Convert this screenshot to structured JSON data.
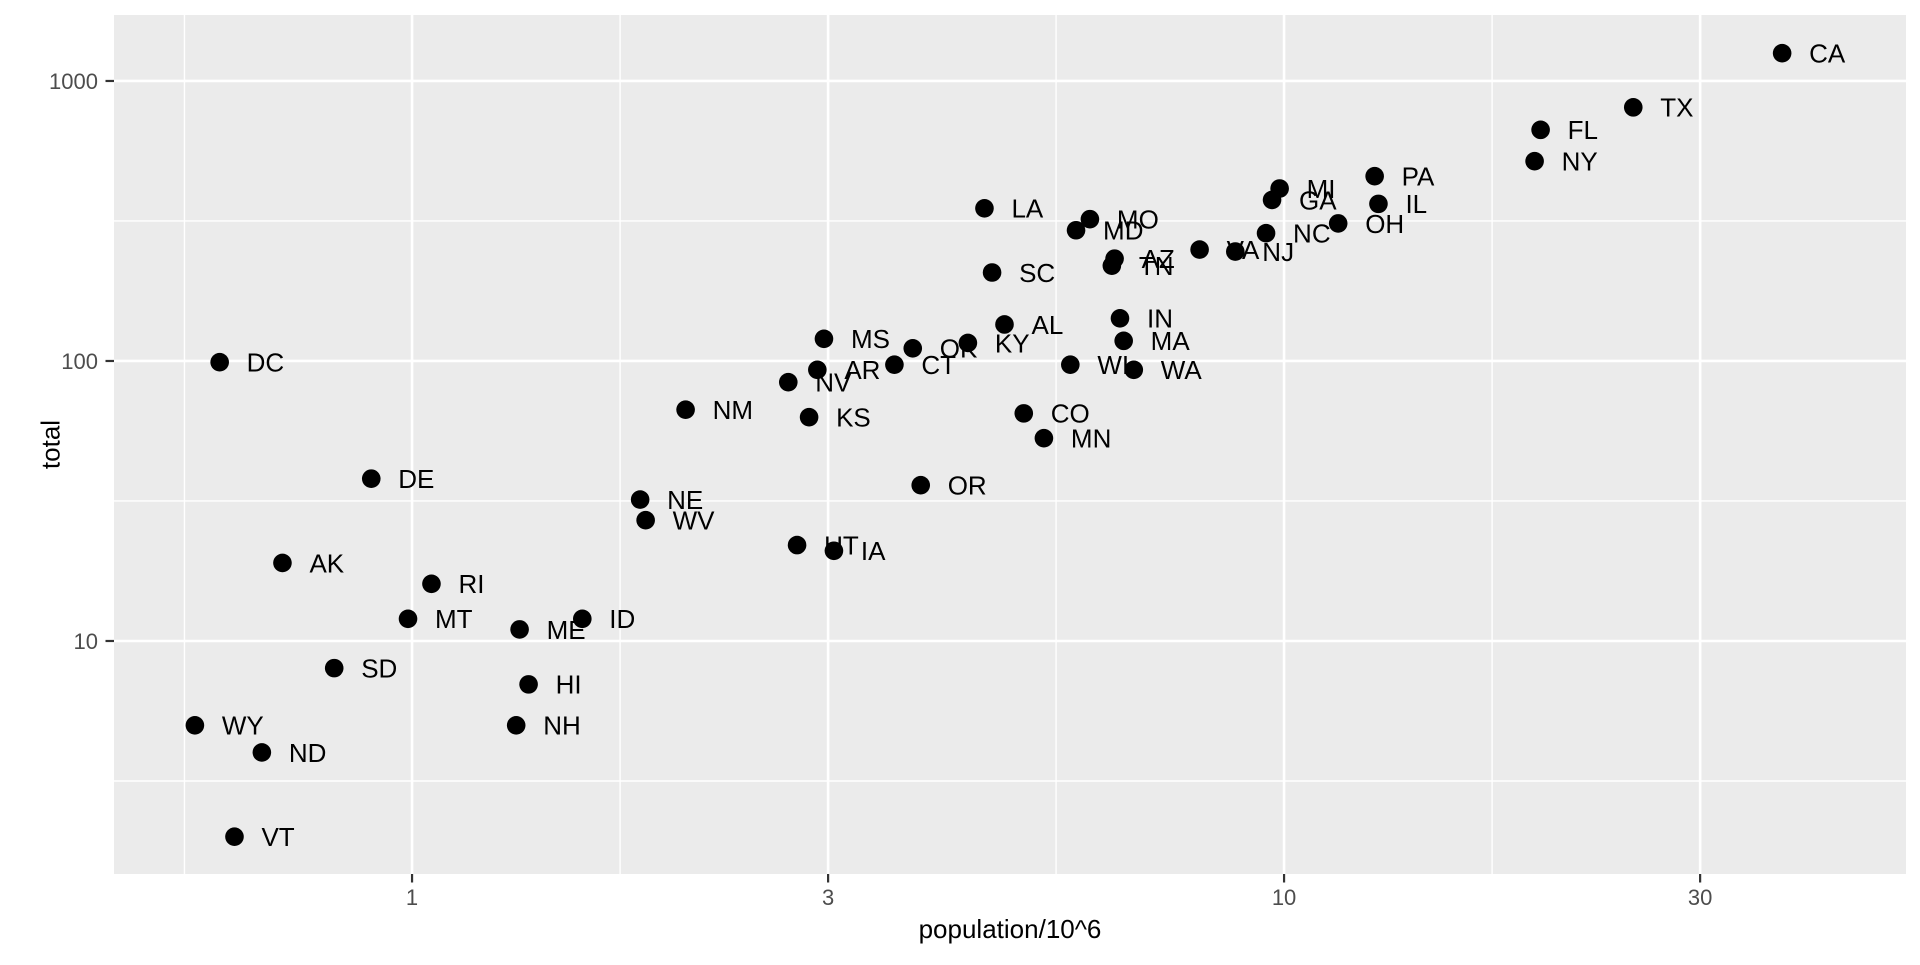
{
  "colors": {
    "page_bg": "#FFFFFF",
    "panel_bg": "#EBEBEB",
    "grid": "#FFFFFF",
    "point": "#000000",
    "state_label": "#000000",
    "tick_text": "#4D4D4D",
    "tick_mark": "#333333",
    "axis_title": "#000000"
  },
  "chart_data": {
    "type": "scatter",
    "title": "",
    "xlabel": "population/10^6",
    "ylabel": "total",
    "x_scale": "log10",
    "y_scale": "log10",
    "grid": true,
    "legend": "none",
    "x_domain": [
      0.4552,
      51.668
    ],
    "y_domain": [
      1.4718,
      1720.3
    ],
    "x_ticks": [
      1,
      3,
      10,
      30
    ],
    "x_tick_labels": [
      "1",
      "3",
      "10",
      "30"
    ],
    "y_ticks": [
      10,
      100,
      1000
    ],
    "y_tick_labels": [
      "10",
      "100",
      "1000"
    ],
    "x_minor_breaks": [
      0.5483,
      1.7321,
      5.4772,
      17.3205
    ],
    "y_minor_breaks": [
      3.1623,
      31.6228,
      316.228
    ],
    "points": [
      {
        "abb": "AL",
        "pop_millions": 4.7797,
        "total": 135
      },
      {
        "abb": "AK",
        "pop_millions": 0.7102,
        "total": 19
      },
      {
        "abb": "AZ",
        "pop_millions": 6.392,
        "total": 232
      },
      {
        "abb": "AR",
        "pop_millions": 2.9159,
        "total": 93
      },
      {
        "abb": "CA",
        "pop_millions": 37.254,
        "total": 1257
      },
      {
        "abb": "CO",
        "pop_millions": 5.0292,
        "total": 65
      },
      {
        "abb": "CT",
        "pop_millions": 3.5741,
        "total": 97
      },
      {
        "abb": "DE",
        "pop_millions": 0.8979,
        "total": 38
      },
      {
        "abb": "DC",
        "pop_millions": 0.6017,
        "total": 99
      },
      {
        "abb": "FL",
        "pop_millions": 19.6877,
        "total": 669
      },
      {
        "abb": "GA",
        "pop_millions": 9.6877,
        "total": 376
      },
      {
        "abb": "HI",
        "pop_millions": 1.3603,
        "total": 7
      },
      {
        "abb": "ID",
        "pop_millions": 1.5676,
        "total": 12
      },
      {
        "abb": "IL",
        "pop_millions": 12.8306,
        "total": 364
      },
      {
        "abb": "IN",
        "pop_millions": 6.4838,
        "total": 142
      },
      {
        "abb": "IA",
        "pop_millions": 3.0464,
        "total": 21
      },
      {
        "abb": "KS",
        "pop_millions": 2.8531,
        "total": 63
      },
      {
        "abb": "KY",
        "pop_millions": 4.3394,
        "total": 116
      },
      {
        "abb": "LA",
        "pop_millions": 4.5334,
        "total": 351
      },
      {
        "abb": "ME",
        "pop_millions": 1.3284,
        "total": 11
      },
      {
        "abb": "MD",
        "pop_millions": 5.7736,
        "total": 293
      },
      {
        "abb": "MA",
        "pop_millions": 6.5476,
        "total": 118
      },
      {
        "abb": "MI",
        "pop_millions": 9.8836,
        "total": 413
      },
      {
        "abb": "MN",
        "pop_millions": 5.3039,
        "total": 53
      },
      {
        "abb": "MS",
        "pop_millions": 2.9673,
        "total": 120
      },
      {
        "abb": "MO",
        "pop_millions": 5.9889,
        "total": 321
      },
      {
        "abb": "MT",
        "pop_millions": 0.9894,
        "total": 12
      },
      {
        "abb": "NE",
        "pop_millions": 1.8263,
        "total": 32
      },
      {
        "abb": "NV",
        "pop_millions": 2.7006,
        "total": 84
      },
      {
        "abb": "NH",
        "pop_millions": 1.3165,
        "total": 5
      },
      {
        "abb": "NJ",
        "pop_millions": 8.7919,
        "total": 246
      },
      {
        "abb": "NM",
        "pop_millions": 2.0592,
        "total": 67
      },
      {
        "abb": "NY",
        "pop_millions": 19.3781,
        "total": 517
      },
      {
        "abb": "NC",
        "pop_millions": 9.5355,
        "total": 286
      },
      {
        "abb": "ND",
        "pop_millions": 0.6726,
        "total": 4
      },
      {
        "abb": "OH",
        "pop_millions": 11.5365,
        "total": 310
      },
      {
        "abb": "OK",
        "pop_millions": 3.7514,
        "total": 111
      },
      {
        "abb": "OR",
        "pop_millions": 3.8311,
        "total": 36
      },
      {
        "abb": "PA",
        "pop_millions": 12.7024,
        "total": 457
      },
      {
        "abb": "RI",
        "pop_millions": 1.0526,
        "total": 16
      },
      {
        "abb": "SC",
        "pop_millions": 4.6254,
        "total": 207
      },
      {
        "abb": "SD",
        "pop_millions": 0.8142,
        "total": 8
      },
      {
        "abb": "TN",
        "pop_millions": 6.3461,
        "total": 219
      },
      {
        "abb": "TX",
        "pop_millions": 25.1456,
        "total": 805
      },
      {
        "abb": "UT",
        "pop_millions": 2.7639,
        "total": 22
      },
      {
        "abb": "VT",
        "pop_millions": 0.6257,
        "total": 2
      },
      {
        "abb": "VA",
        "pop_millions": 8.001,
        "total": 250
      },
      {
        "abb": "WA",
        "pop_millions": 6.7245,
        "total": 93
      },
      {
        "abb": "WV",
        "pop_millions": 1.853,
        "total": 27
      },
      {
        "abb": "WI",
        "pop_millions": 5.687,
        "total": 97
      },
      {
        "abb": "WY",
        "pop_millions": 0.5636,
        "total": 5
      }
    ]
  }
}
